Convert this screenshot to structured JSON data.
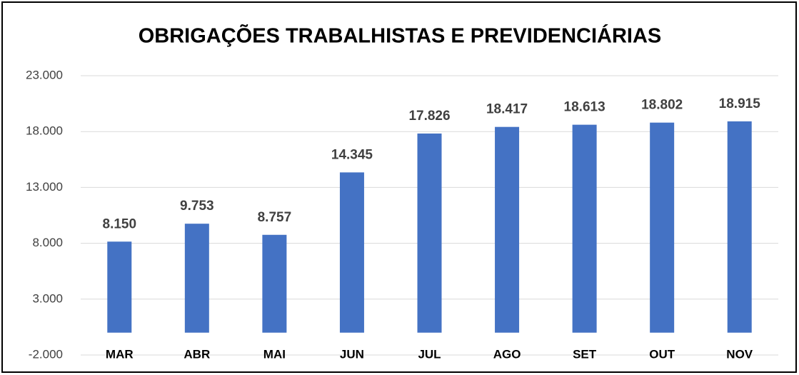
{
  "chart_data": {
    "type": "bar",
    "title": "OBRIGAÇÕES TRABALHISTAS E PREVIDENCIÁRIAS",
    "categories": [
      "MAR",
      "ABR",
      "MAI",
      "JUN",
      "JUL",
      "AGO",
      "SET",
      "OUT",
      "NOV"
    ],
    "values": [
      8150,
      9753,
      8757,
      14345,
      17826,
      18417,
      18613,
      18802,
      18915
    ],
    "value_labels": [
      "8.150",
      "9.753",
      "8.757",
      "14.345",
      "17.826",
      "18.417",
      "18.613",
      "18.802",
      "18.915"
    ],
    "color": "#4472c4",
    "ylim": [
      -2000,
      23000
    ],
    "yticks": [
      {
        "value": -2000,
        "label": "-2.000"
      },
      {
        "value": 3000,
        "label": "3.000"
      },
      {
        "value": 8000,
        "label": "8.000"
      },
      {
        "value": 13000,
        "label": "13.000"
      },
      {
        "value": 18000,
        "label": "18.000"
      },
      {
        "value": 23000,
        "label": "23.000"
      }
    ],
    "grid": true
  }
}
